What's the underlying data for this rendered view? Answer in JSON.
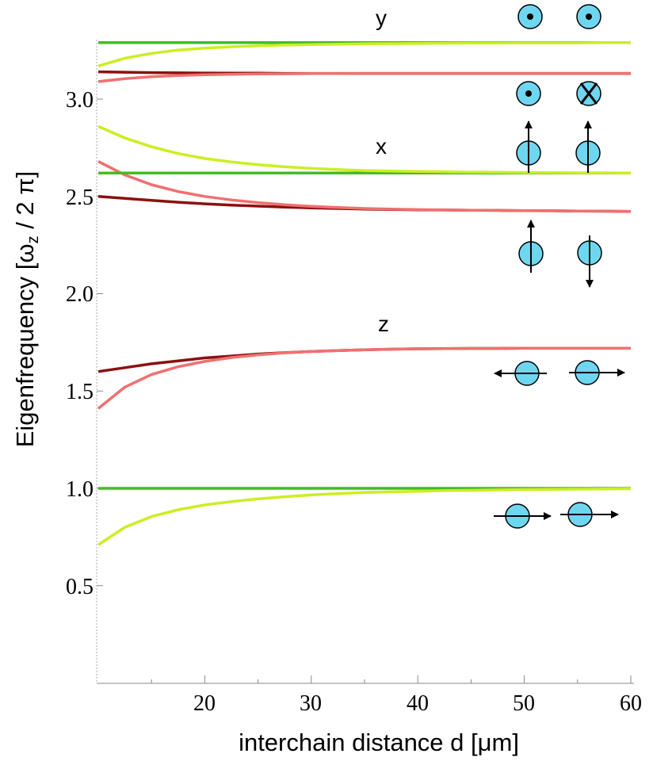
{
  "chart_data": {
    "type": "line",
    "xlabel": "interchain distance d [μm]",
    "ylabel_parts": [
      "Eigenfrequency [",
      "ω",
      "z",
      " / 2 π]"
    ],
    "xlim": [
      10,
      60
    ],
    "ylim": [
      0,
      3.3
    ],
    "xticks": [
      {
        "value": 20,
        "label": "20"
      },
      {
        "value": 30,
        "label": "30"
      },
      {
        "value": 40,
        "label": "40"
      },
      {
        "value": 50,
        "label": "50"
      },
      {
        "value": 60,
        "label": "60"
      }
    ],
    "yticks": [
      {
        "value": 0.5,
        "label": "0.5"
      },
      {
        "value": 1.0,
        "label": "1.0"
      },
      {
        "value": 1.5,
        "label": "1.5"
      },
      {
        "value": 2.0,
        "label": "2.0"
      },
      {
        "value": 2.5,
        "label": "2.5"
      },
      {
        "value": 3.0,
        "label": "3.0"
      }
    ],
    "x": [
      10,
      12.5,
      15,
      17.5,
      20,
      22.5,
      25,
      27.5,
      30,
      32.5,
      35,
      37.5,
      40,
      42.5,
      45,
      47.5,
      50,
      52.5,
      55,
      57.5,
      60
    ],
    "series": [
      {
        "name": "z-mode-com-flat",
        "color": "#44bb22",
        "values": [
          1.0,
          1.0,
          1.0,
          1.0,
          1.0,
          1.0,
          1.0,
          1.0,
          1.0,
          1.0,
          1.0,
          1.0,
          1.0,
          1.0,
          1.0,
          1.0,
          1.0,
          1.0,
          1.0,
          1.0,
          1.0
        ]
      },
      {
        "name": "z-mode-com-coupled",
        "color": "#ccee22",
        "values": [
          0.71,
          0.8,
          0.855,
          0.89,
          0.915,
          0.932,
          0.946,
          0.957,
          0.966,
          0.973,
          0.978,
          0.982,
          0.985,
          0.988,
          0.99,
          0.992,
          0.994,
          0.995,
          0.996,
          0.997,
          0.998
        ]
      },
      {
        "name": "z-mode-rocking-dark",
        "color": "#8b1010",
        "values": [
          1.6,
          1.62,
          1.64,
          1.655,
          1.67,
          1.68,
          1.69,
          1.697,
          1.703,
          1.708,
          1.712,
          1.715,
          1.717,
          1.718,
          1.719,
          1.719,
          1.72,
          1.72,
          1.72,
          1.72,
          1.72
        ]
      },
      {
        "name": "z-mode-rocking-light",
        "color": "#f07070",
        "values": [
          1.41,
          1.52,
          1.585,
          1.625,
          1.652,
          1.672,
          1.686,
          1.696,
          1.703,
          1.708,
          1.712,
          1.715,
          1.717,
          1.718,
          1.719,
          1.719,
          1.72,
          1.72,
          1.72,
          1.72,
          1.72
        ]
      },
      {
        "name": "x-mode-rocking-dark",
        "color": "#8b1010",
        "values": [
          2.5,
          2.49,
          2.48,
          2.47,
          2.462,
          2.455,
          2.45,
          2.445,
          2.441,
          2.438,
          2.435,
          2.433,
          2.431,
          2.43,
          2.429,
          2.428,
          2.427,
          2.426,
          2.425,
          2.424,
          2.423
        ]
      },
      {
        "name": "x-mode-rocking-light",
        "color": "#f07070",
        "values": [
          2.68,
          2.61,
          2.56,
          2.525,
          2.5,
          2.482,
          2.468,
          2.457,
          2.449,
          2.443,
          2.438,
          2.435,
          2.432,
          2.43,
          2.429,
          2.428,
          2.427,
          2.426,
          2.425,
          2.424,
          2.423
        ]
      },
      {
        "name": "x-mode-com-flat",
        "color": "#44bb22",
        "values": [
          2.62,
          2.62,
          2.62,
          2.62,
          2.62,
          2.62,
          2.62,
          2.62,
          2.62,
          2.62,
          2.62,
          2.62,
          2.62,
          2.62,
          2.62,
          2.62,
          2.62,
          2.62,
          2.62,
          2.62,
          2.62
        ]
      },
      {
        "name": "x-mode-com-coupled",
        "color": "#ccee22",
        "values": [
          2.86,
          2.8,
          2.755,
          2.72,
          2.695,
          2.677,
          2.663,
          2.652,
          2.644,
          2.638,
          2.633,
          2.63,
          2.628,
          2.626,
          2.625,
          2.624,
          2.623,
          2.622,
          2.621,
          2.621,
          2.62
        ]
      },
      {
        "name": "y-mode-rocking-dark",
        "color": "#8b1010",
        "values": [
          3.14,
          3.138,
          3.136,
          3.135,
          3.134,
          3.133,
          3.133,
          3.132,
          3.132,
          3.132,
          3.132,
          3.132,
          3.132,
          3.132,
          3.132,
          3.132,
          3.132,
          3.132,
          3.132,
          3.132,
          3.132
        ]
      },
      {
        "name": "y-mode-rocking-light",
        "color": "#f07070",
        "values": [
          3.09,
          3.105,
          3.115,
          3.121,
          3.125,
          3.127,
          3.129,
          3.13,
          3.131,
          3.131,
          3.132,
          3.132,
          3.132,
          3.132,
          3.132,
          3.132,
          3.132,
          3.132,
          3.132,
          3.132,
          3.132
        ]
      },
      {
        "name": "y-mode-com-flat",
        "color": "#44bb22",
        "values": [
          3.29,
          3.29,
          3.29,
          3.29,
          3.29,
          3.29,
          3.29,
          3.29,
          3.29,
          3.29,
          3.29,
          3.29,
          3.29,
          3.29,
          3.29,
          3.29,
          3.29,
          3.29,
          3.29,
          3.29,
          3.29
        ]
      },
      {
        "name": "y-mode-com-coupled",
        "color": "#ccee22",
        "values": [
          3.17,
          3.21,
          3.235,
          3.252,
          3.262,
          3.269,
          3.274,
          3.278,
          3.28,
          3.282,
          3.284,
          3.285,
          3.286,
          3.287,
          3.288,
          3.288,
          3.289,
          3.289,
          3.289,
          3.29,
          3.29
        ]
      }
    ],
    "annotations": [
      {
        "name": "mode-label-y",
        "text": "y"
      },
      {
        "name": "mode-label-x",
        "text": "x"
      },
      {
        "name": "mode-label-z",
        "text": "z"
      }
    ]
  }
}
